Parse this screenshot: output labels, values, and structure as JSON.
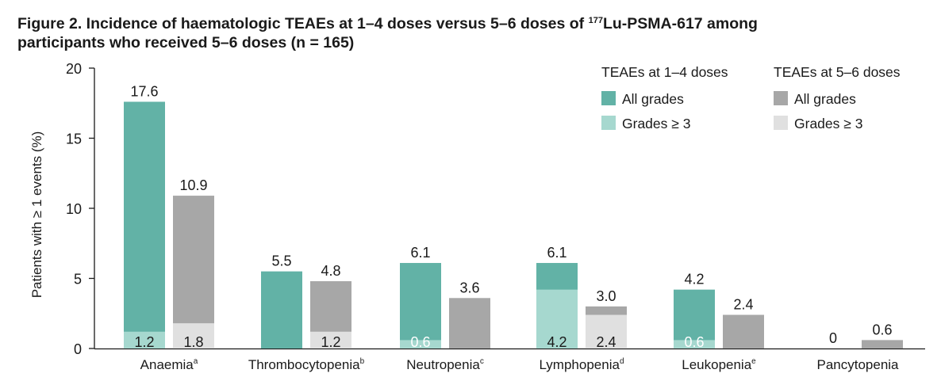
{
  "title": {
    "line1_before_sup": "Figure 2. Incidence of haematologic TEAEs at 1–4 doses versus 5–6 doses of ",
    "sup": "177",
    "line1_after_sup": "Lu-PSMA-617 among",
    "line2": "participants who received 5–6 doses (n = 165)"
  },
  "colors": {
    "group1_all": "#62b2a6",
    "group1_g3": "#a6d8cf",
    "group2_all": "#a7a7a7",
    "group2_g3": "#e0e0e0",
    "axis": "#1a1a1a"
  },
  "chart_data": {
    "type": "bar",
    "ylabel": "Patients with ≥ 1 events (%)",
    "xlabel": "",
    "ylim": [
      0,
      20
    ],
    "yticks": [
      0,
      5,
      10,
      15,
      20
    ],
    "categories": [
      {
        "label": "Anaemia",
        "sup": "a"
      },
      {
        "label": "Thrombocytopenia",
        "sup": "b"
      },
      {
        "label": "Neutropenia",
        "sup": "c"
      },
      {
        "label": "Lymphopenia",
        "sup": "d"
      },
      {
        "label": "Leukopenia",
        "sup": "e"
      },
      {
        "label": "Pancytopenia",
        "sup": ""
      }
    ],
    "series": [
      {
        "name": "TEAEs at 1–4 doses",
        "all_grades": [
          17.6,
          5.5,
          6.1,
          6.1,
          4.2,
          0
        ],
        "grades_ge3": [
          1.2,
          null,
          0.6,
          4.2,
          0.6,
          null
        ]
      },
      {
        "name": "TEAEs at 5–6 doses",
        "all_grades": [
          10.9,
          4.8,
          3.6,
          3.0,
          2.4,
          0.6
        ],
        "grades_ge3": [
          1.8,
          1.2,
          null,
          2.4,
          null,
          null
        ]
      }
    ],
    "all_labels": [
      [
        "17.6",
        "10.9"
      ],
      [
        "5.5",
        "4.8"
      ],
      [
        "6.1",
        "3.6"
      ],
      [
        "6.1",
        "3.0"
      ],
      [
        "4.2",
        "2.4"
      ],
      [
        "0",
        "0.6"
      ]
    ],
    "g3_labels": [
      [
        "1.2",
        "1.8"
      ],
      [
        "",
        "1.2"
      ],
      [
        "0.6",
        ""
      ],
      [
        "4.2",
        "2.4"
      ],
      [
        "0.6",
        ""
      ],
      [
        "",
        ""
      ]
    ],
    "legend": {
      "placement": "top-right",
      "groups": [
        {
          "title": "TEAEs at 1–4 doses",
          "items": [
            "All grades",
            "Grades ≥ 3"
          ]
        },
        {
          "title": "TEAEs at 5–6 doses",
          "items": [
            "All grades",
            "Grades ≥ 3"
          ]
        }
      ]
    }
  }
}
